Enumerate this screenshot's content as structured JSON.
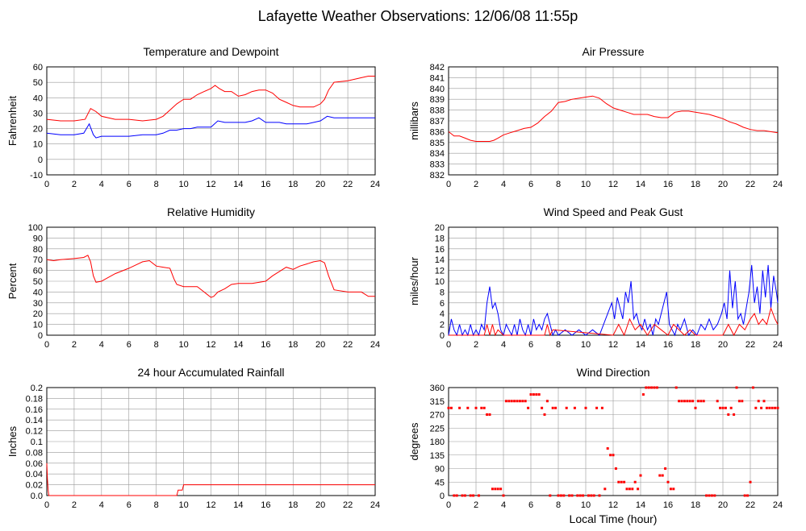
{
  "title": "Lafayette Weather Observations: 12/06/08 11:55p",
  "x_axis_label": "Local Time (hour)",
  "colors": {
    "red": "#ff0000",
    "blue": "#0000ff",
    "grid": "#999999"
  },
  "chart_data": [
    {
      "id": "temp",
      "type": "line",
      "title": "Temperature and Dewpoint",
      "ylabel": "Fahrenheit",
      "xlim": [
        0,
        24
      ],
      "ylim": [
        -10,
        60
      ],
      "xticks": [
        0,
        2,
        4,
        6,
        8,
        10,
        12,
        14,
        16,
        18,
        20,
        22,
        24
      ],
      "yticks": [
        -10,
        0,
        10,
        20,
        30,
        40,
        50,
        60
      ],
      "grid": true,
      "series": [
        {
          "color": "#ff0000",
          "x": [
            0,
            1,
            2,
            2.8,
            3.2,
            3.6,
            4,
            5,
            6,
            7,
            8,
            8.5,
            9,
            9.5,
            10,
            10.5,
            11,
            11.5,
            12,
            12.3,
            12.6,
            13,
            13.5,
            14,
            14.5,
            15,
            15.5,
            16,
            16.5,
            17,
            17.5,
            18,
            18.5,
            19,
            19.5,
            20,
            20.3,
            20.6,
            21,
            22,
            23,
            23.5,
            24
          ],
          "y": [
            26,
            25,
            25,
            26,
            33,
            31,
            28,
            26,
            26,
            25,
            26,
            28,
            32,
            36,
            39,
            39,
            42,
            44,
            46,
            48,
            46,
            44,
            44,
            41,
            42,
            44,
            45,
            45,
            43,
            39,
            37,
            35,
            34,
            34,
            34,
            36,
            39,
            45,
            50,
            51,
            53,
            54,
            54
          ]
        },
        {
          "color": "#0000ff",
          "x": [
            0,
            1,
            2,
            2.7,
            3.1,
            3.4,
            3.6,
            4,
            5,
            6,
            7,
            8,
            8.5,
            9,
            9.5,
            10,
            10.5,
            11,
            11.5,
            12,
            12.5,
            13,
            13.5,
            14,
            14.5,
            15,
            15.5,
            16,
            17,
            17.5,
            18,
            19,
            20,
            20.5,
            21,
            22,
            23,
            24
          ],
          "y": [
            17,
            16,
            16,
            17,
            23,
            16,
            14,
            15,
            15,
            15,
            16,
            16,
            17,
            19,
            19,
            20,
            20,
            21,
            21,
            21,
            25,
            24,
            24,
            24,
            24,
            25,
            27,
            24,
            24,
            23,
            23,
            23,
            25,
            28,
            27,
            27,
            27,
            27
          ]
        }
      ]
    },
    {
      "id": "pressure",
      "type": "line",
      "title": "Air Pressure",
      "ylabel": "millibars",
      "xlim": [
        0,
        24
      ],
      "ylim": [
        832,
        842
      ],
      "xticks": [
        0,
        2,
        4,
        6,
        8,
        10,
        12,
        14,
        16,
        18,
        20,
        22,
        24
      ],
      "yticks": [
        832,
        833,
        834,
        835,
        836,
        837,
        838,
        839,
        840,
        841,
        842
      ],
      "grid": true,
      "series": [
        {
          "color": "#ff0000",
          "x": [
            0,
            0.4,
            0.8,
            1.2,
            1.6,
            2,
            2.5,
            3,
            3.3,
            3.6,
            4,
            4.5,
            5,
            5.5,
            6,
            6.5,
            7,
            7.5,
            8,
            8.5,
            9,
            9.5,
            10,
            10.5,
            11,
            11.5,
            12,
            12.5,
            13,
            13.5,
            14,
            14.5,
            15,
            15.5,
            16,
            16.5,
            17,
            17.5,
            18,
            18.5,
            19,
            19.5,
            20,
            20.5,
            21,
            21.5,
            22,
            22.5,
            23,
            24
          ],
          "y": [
            836,
            835.6,
            835.6,
            835.4,
            835.2,
            835.1,
            835.1,
            835.1,
            835.2,
            835.4,
            835.7,
            835.9,
            836.1,
            836.3,
            836.4,
            836.8,
            837.4,
            837.9,
            838.7,
            838.8,
            839,
            839.1,
            839.2,
            839.3,
            839.1,
            838.6,
            838.2,
            838,
            837.8,
            837.6,
            837.6,
            837.6,
            837.4,
            837.3,
            837.3,
            837.8,
            837.9,
            837.9,
            837.8,
            837.7,
            837.6,
            837.4,
            837.2,
            836.9,
            836.7,
            836.4,
            836.2,
            836.1,
            836.1,
            835.9
          ]
        }
      ]
    },
    {
      "id": "humidity",
      "type": "line",
      "title": "Relative Humidity",
      "ylabel": "Percent",
      "xlim": [
        0,
        24
      ],
      "ylim": [
        0,
        100
      ],
      "xticks": [
        0,
        2,
        4,
        6,
        8,
        10,
        12,
        14,
        16,
        18,
        20,
        22,
        24
      ],
      "yticks": [
        0,
        10,
        20,
        30,
        40,
        50,
        60,
        70,
        80,
        90,
        100
      ],
      "grid": true,
      "series": [
        {
          "color": "#ff0000",
          "x": [
            0,
            0.5,
            1,
            2,
            2.7,
            3,
            3.2,
            3.4,
            3.6,
            4,
            5,
            6,
            6.5,
            7,
            7.5,
            8,
            8.5,
            9,
            9.3,
            9.5,
            10,
            10.5,
            11,
            11.5,
            12,
            12.2,
            12.5,
            13,
            13.5,
            14,
            15,
            16,
            16.5,
            17,
            17.5,
            18,
            18.5,
            19,
            19.5,
            20,
            20.3,
            20.6,
            21,
            22,
            23,
            23.5,
            24
          ],
          "y": [
            70,
            69,
            70,
            71,
            72,
            74,
            68,
            55,
            49,
            50,
            57,
            62,
            65,
            68,
            69,
            64,
            63,
            62,
            52,
            47,
            45,
            45,
            45,
            40,
            35,
            36,
            40,
            43,
            47,
            48,
            48,
            50,
            55,
            59,
            63,
            61,
            64,
            66,
            68,
            69,
            67,
            55,
            42,
            40,
            40,
            36,
            36
          ]
        }
      ]
    },
    {
      "id": "wind",
      "type": "line",
      "title": "Wind Speed and Peak Gust",
      "ylabel": "miles/hour",
      "xlim": [
        0,
        24
      ],
      "ylim": [
        0,
        20
      ],
      "xticks": [
        0,
        2,
        4,
        6,
        8,
        10,
        12,
        14,
        16,
        18,
        20,
        22,
        24
      ],
      "yticks": [
        0,
        2,
        4,
        6,
        8,
        10,
        12,
        14,
        16,
        18,
        20
      ],
      "grid": true,
      "series": [
        {
          "color": "#0000ff",
          "x": [
            0,
            0.2,
            0.4,
            0.6,
            0.8,
            1,
            1.2,
            1.4,
            1.6,
            1.8,
            2,
            2.2,
            2.4,
            2.6,
            2.8,
            3,
            3.2,
            3.4,
            3.6,
            3.8,
            4,
            4.2,
            4.4,
            4.6,
            4.8,
            5,
            5.2,
            5.4,
            5.6,
            5.8,
            6,
            6.2,
            6.4,
            6.6,
            6.8,
            7,
            7.2,
            7.4,
            7.6,
            7.8,
            8,
            8.5,
            9,
            9.5,
            10,
            10.5,
            11,
            11.3,
            11.6,
            11.9,
            12.1,
            12.3,
            12.5,
            12.7,
            12.9,
            13.1,
            13.3,
            13.5,
            13.7,
            13.9,
            14.1,
            14.3,
            14.5,
            14.7,
            14.9,
            15.1,
            15.3,
            15.5,
            15.7,
            15.9,
            16.1,
            16.3,
            16.5,
            16.7,
            16.9,
            17.2,
            17.5,
            17.8,
            18.1,
            18.4,
            18.7,
            19,
            19.3,
            19.6,
            19.9,
            20.1,
            20.3,
            20.5,
            20.7,
            20.9,
            21.1,
            21.3,
            21.5,
            21.7,
            21.9,
            22.1,
            22.3,
            22.5,
            22.7,
            22.9,
            23.1,
            23.3,
            23.5,
            23.7,
            23.9,
            24
          ],
          "y": [
            0,
            3,
            1,
            0,
            2,
            0,
            1,
            0,
            2,
            0,
            1,
            0,
            2,
            1,
            6,
            9,
            5,
            6,
            4,
            1,
            0,
            2,
            1,
            0,
            2,
            0,
            3,
            1,
            0,
            2,
            0,
            3,
            1,
            2,
            1,
            3,
            4,
            2,
            0,
            1,
            0,
            1,
            0,
            1,
            0,
            1,
            0,
            2,
            4,
            6,
            3,
            7,
            5,
            3,
            8,
            6,
            10,
            3,
            4,
            2,
            1,
            3,
            1,
            2,
            0,
            3,
            2,
            4,
            6,
            8,
            2,
            1,
            0,
            2,
            1,
            3,
            0,
            1,
            0,
            2,
            1,
            3,
            1,
            2,
            4,
            6,
            3,
            12,
            5,
            10,
            3,
            4,
            2,
            5,
            8,
            13,
            6,
            9,
            4,
            12,
            7,
            13,
            5,
            11,
            8,
            6
          ]
        },
        {
          "color": "#ff0000",
          "x": [
            0,
            2.6,
            2.8,
            3,
            3.2,
            3.4,
            3.6,
            4,
            7,
            7.2,
            7.4,
            7.6,
            12,
            12.4,
            12.8,
            13.2,
            13.6,
            14,
            14.5,
            15,
            15.5,
            16,
            16.4,
            16.8,
            17.2,
            17.6,
            18,
            20,
            20.4,
            20.8,
            21.2,
            21.6,
            22,
            22.3,
            22.6,
            22.9,
            23.2,
            23.5,
            23.8,
            24
          ],
          "y": [
            0,
            0,
            2,
            0,
            2,
            0,
            1,
            0,
            0,
            2,
            0,
            1,
            0,
            2,
            0,
            3,
            1,
            2,
            0,
            2,
            1,
            0,
            2,
            1,
            0,
            1,
            0,
            0,
            2,
            0,
            2,
            1,
            3,
            4,
            2,
            3,
            2,
            5,
            3,
            2
          ]
        }
      ]
    },
    {
      "id": "rain",
      "type": "line",
      "title": "24 hour Accumulated Rainfall",
      "ylabel": "Inches",
      "xlim": [
        0,
        24
      ],
      "ylim": [
        0,
        0.2
      ],
      "xticks": [
        0,
        2,
        4,
        6,
        8,
        10,
        12,
        14,
        16,
        18,
        20,
        22,
        24
      ],
      "yticks": [
        0,
        0.02,
        0.04,
        0.06,
        0.08,
        0.1,
        0.12,
        0.14,
        0.16,
        0.18,
        0.2
      ],
      "ytick_labels": [
        "0.0",
        "0.02",
        "0.04",
        "0.06",
        "0.08",
        "0.1",
        "0.12",
        "0.14",
        "0.16",
        "0.18",
        "0.2"
      ],
      "grid": true,
      "series": [
        {
          "color": "#ff0000",
          "x": [
            0,
            0.05,
            0.1,
            0.15,
            0.2,
            9.5,
            9.6,
            9.9,
            10,
            24
          ],
          "y": [
            0.06,
            0.03,
            0.01,
            0,
            0,
            0,
            0.01,
            0.01,
            0.02,
            0.02
          ]
        }
      ]
    },
    {
      "id": "dir",
      "type": "scatter",
      "title": "Wind Direction",
      "ylabel": "degrees",
      "xlim": [
        0,
        24
      ],
      "ylim": [
        0,
        360
      ],
      "xticks": [
        0,
        2,
        4,
        6,
        8,
        10,
        12,
        14,
        16,
        18,
        20,
        22,
        24
      ],
      "yticks": [
        0,
        45,
        90,
        135,
        180,
        225,
        270,
        315,
        360
      ],
      "grid": true,
      "series": [
        {
          "color": "#ff0000",
          "x": [
            0,
            0.2,
            0.4,
            0.6,
            0.8,
            1,
            1.2,
            1.4,
            1.6,
            1.8,
            2,
            2.2,
            2.4,
            2.6,
            2.8,
            3,
            3.2,
            3.4,
            3.6,
            3.8,
            4,
            4.2,
            4.4,
            4.6,
            4.8,
            5,
            5.2,
            5.4,
            5.6,
            5.8,
            6,
            6.2,
            6.4,
            6.6,
            6.8,
            7,
            7.2,
            7.4,
            7.6,
            7.8,
            8,
            8.2,
            8.4,
            8.6,
            8.8,
            9,
            9.2,
            9.4,
            9.6,
            9.8,
            10,
            10.2,
            10.4,
            10.6,
            10.8,
            11,
            11.2,
            11.4,
            11.6,
            11.8,
            12,
            12.2,
            12.4,
            12.6,
            12.8,
            13,
            13.2,
            13.4,
            13.6,
            13.8,
            14,
            14.2,
            14.4,
            14.6,
            14.8,
            15,
            15.2,
            15.4,
            15.6,
            15.8,
            16,
            16.2,
            16.4,
            16.6,
            16.8,
            17,
            17.2,
            17.4,
            17.6,
            17.8,
            18,
            18.2,
            18.4,
            18.6,
            18.8,
            19,
            19.2,
            19.4,
            19.6,
            19.8,
            20,
            20.2,
            20.4,
            20.6,
            20.8,
            21,
            21.2,
            21.4,
            21.6,
            21.8,
            22,
            22.2,
            22.4,
            22.6,
            22.8,
            23,
            23.2,
            23.4,
            23.6,
            23.8,
            24
          ],
          "y": [
            292,
            292,
            0,
            0,
            292,
            0,
            0,
            292,
            0,
            0,
            292,
            0,
            292,
            292,
            270,
            270,
            22,
            22,
            22,
            22,
            0,
            315,
            315,
            315,
            315,
            315,
            315,
            315,
            315,
            292,
            337,
            337,
            337,
            337,
            292,
            270,
            315,
            0,
            292,
            292,
            0,
            0,
            0,
            292,
            0,
            0,
            292,
            0,
            0,
            0,
            292,
            0,
            0,
            0,
            292,
            0,
            292,
            22,
            157,
            135,
            135,
            90,
            45,
            45,
            45,
            22,
            22,
            22,
            45,
            22,
            67,
            337,
            360,
            360,
            360,
            360,
            360,
            67,
            67,
            90,
            45,
            22,
            22,
            360,
            315,
            315,
            315,
            315,
            315,
            315,
            292,
            315,
            315,
            315,
            0,
            0,
            0,
            0,
            315,
            292,
            292,
            292,
            270,
            292,
            270,
            360,
            315,
            315,
            0,
            0,
            45,
            360,
            292,
            315,
            292,
            315,
            292,
            292,
            292,
            292,
            292
          ]
        }
      ]
    }
  ]
}
